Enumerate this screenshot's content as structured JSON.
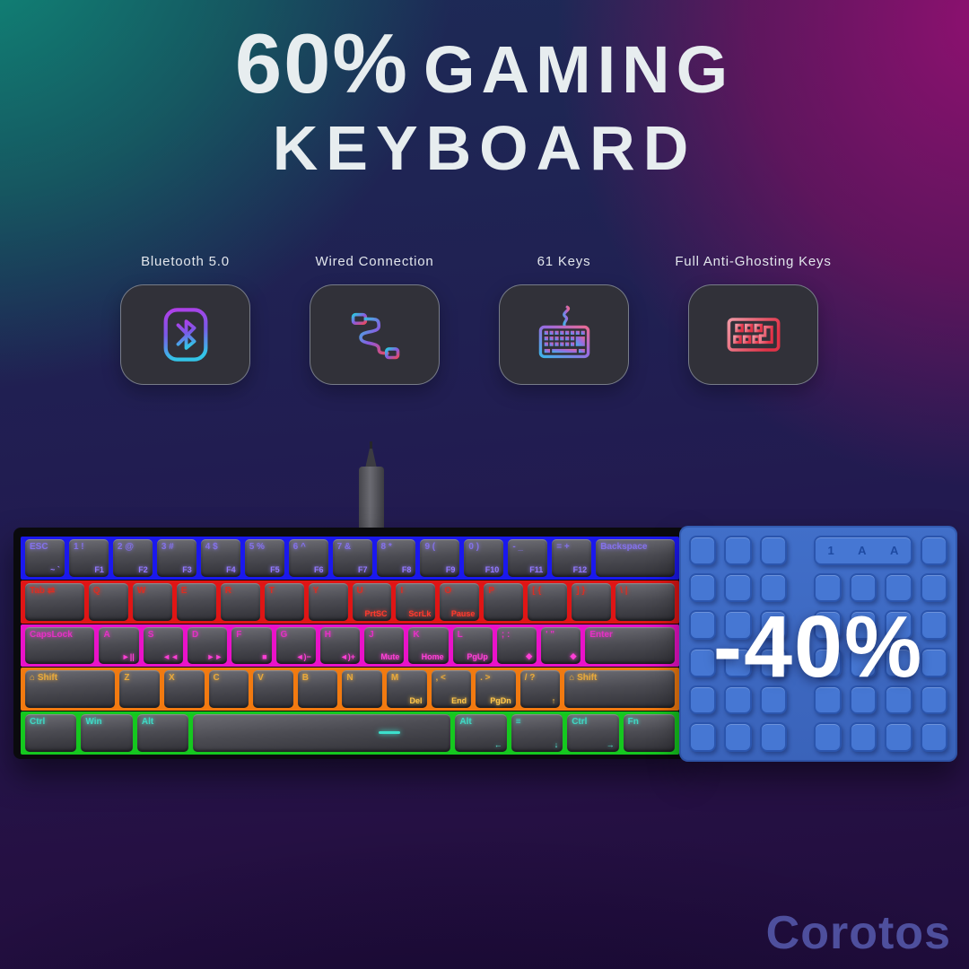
{
  "title": {
    "big": "60%",
    "line1_rest": "GAMING",
    "line2": "KEYBOARD"
  },
  "features": [
    {
      "label": "Bluetooth 5.0",
      "icon": "bluetooth-icon"
    },
    {
      "label": "Wired Connection",
      "icon": "usb-cable-icon"
    },
    {
      "label": "61 Keys",
      "icon": "keyboard-61-keys-icon"
    },
    {
      "label": "Full Anti-Ghosting Keys",
      "icon": "anti-ghosting-icon"
    }
  ],
  "panel": {
    "discount": "-40%",
    "indicators": [
      "1",
      "A",
      "A"
    ],
    "base_color": "#3f6cc6",
    "key_color": "#4677d3"
  },
  "watermark": "Corotos",
  "colors": {
    "bg_teal": "#0f8a79",
    "bg_magenta": "#8e1070",
    "bg_navy": "#1d2a56",
    "title_text": "#e7edef",
    "card_bg": "#313139",
    "row_glows": [
      "#1a18ee",
      "#e01515",
      "#ea12c9",
      "#f27a10",
      "#15c81f"
    ]
  },
  "keyboard": {
    "rows": [
      {
        "glow": "#1a18ee",
        "t_color": "#8472e8",
        "b_color": "#9379ff",
        "keys": [
          {
            "u": 1,
            "t": "ESC",
            "b": "~ `"
          },
          {
            "u": 1,
            "t": "1 !",
            "b": "F1"
          },
          {
            "u": 1,
            "t": "2 @",
            "b": "F2"
          },
          {
            "u": 1,
            "t": "3 #",
            "b": "F3"
          },
          {
            "u": 1,
            "t": "4 $",
            "b": "F4"
          },
          {
            "u": 1,
            "t": "5 %",
            "b": "F5"
          },
          {
            "u": 1,
            "t": "6 ^",
            "b": "F6"
          },
          {
            "u": 1,
            "t": "7 &",
            "b": "F7"
          },
          {
            "u": 1,
            "t": "8 *",
            "b": "F8"
          },
          {
            "u": 1,
            "t": "9 (",
            "b": "F9"
          },
          {
            "u": 1,
            "t": "0 )",
            "b": "F10"
          },
          {
            "u": 1,
            "t": "- _",
            "b": "F11"
          },
          {
            "u": 1,
            "t": "= +",
            "b": "F12"
          },
          {
            "u": 2,
            "t": "Backspace",
            "b": ""
          }
        ]
      },
      {
        "glow": "#e01515",
        "t_color": "#d92e24",
        "b_color": "#ff3b2e",
        "keys": [
          {
            "u": 1.5,
            "t": "Tab ⇄",
            "b": ""
          },
          {
            "u": 1,
            "t": "Q",
            "b": ""
          },
          {
            "u": 1,
            "t": "W",
            "b": ""
          },
          {
            "u": 1,
            "t": "E",
            "b": ""
          },
          {
            "u": 1,
            "t": "R",
            "b": ""
          },
          {
            "u": 1,
            "t": "T",
            "b": ""
          },
          {
            "u": 1,
            "t": "Y",
            "b": ""
          },
          {
            "u": 1,
            "t": "U",
            "b": "PrtSC"
          },
          {
            "u": 1,
            "t": "I",
            "b": "ScrLk"
          },
          {
            "u": 1,
            "t": "O",
            "b": "Pause"
          },
          {
            "u": 1,
            "t": "P",
            "b": ""
          },
          {
            "u": 1,
            "t": "[ {",
            "b": ""
          },
          {
            "u": 1,
            "t": "] }",
            "b": ""
          },
          {
            "u": 1.5,
            "t": "\\ |",
            "b": ""
          }
        ]
      },
      {
        "glow": "#ea12c9",
        "t_color": "#e431c4",
        "b_color": "#ff3fd6",
        "keys": [
          {
            "u": 1.75,
            "t": "CapsLock",
            "b": ""
          },
          {
            "u": 1,
            "t": "A",
            "b": "►||"
          },
          {
            "u": 1,
            "t": "S",
            "b": "◄◄"
          },
          {
            "u": 1,
            "t": "D",
            "b": "►►"
          },
          {
            "u": 1,
            "t": "F",
            "b": "■"
          },
          {
            "u": 1,
            "t": "G",
            "b": "◄)−"
          },
          {
            "u": 1,
            "t": "H",
            "b": "◄)+"
          },
          {
            "u": 1,
            "t": "J",
            "b": "Mute"
          },
          {
            "u": 1,
            "t": "K",
            "b": "Home"
          },
          {
            "u": 1,
            "t": "L",
            "b": "PgUp"
          },
          {
            "u": 1,
            "t": "; :",
            "b": "◆"
          },
          {
            "u": 1,
            "t": "' \"",
            "b": "◆"
          },
          {
            "u": 2.25,
            "t": "Enter",
            "b": ""
          }
        ]
      },
      {
        "glow": "#f27a10",
        "t_color": "#e8a93c",
        "b_color": "#ffc548",
        "keys": [
          {
            "u": 2.25,
            "t": "⌂ Shift",
            "b": ""
          },
          {
            "u": 1,
            "t": "Z",
            "b": ""
          },
          {
            "u": 1,
            "t": "X",
            "b": ""
          },
          {
            "u": 1,
            "t": "C",
            "b": ""
          },
          {
            "u": 1,
            "t": "V",
            "b": ""
          },
          {
            "u": 1,
            "t": "B",
            "b": ""
          },
          {
            "u": 1,
            "t": "N",
            "b": ""
          },
          {
            "u": 1,
            "t": "M",
            "b": "Del"
          },
          {
            "u": 1,
            "t": ", <",
            "b": "End"
          },
          {
            "u": 1,
            "t": ". >",
            "b": "PgDn"
          },
          {
            "u": 1,
            "t": "/ ?",
            "b": "↑"
          },
          {
            "u": 2.75,
            "t": "⌂ Shift",
            "b": ""
          }
        ]
      },
      {
        "glow": "#15c81f",
        "t_color": "#40d8c4",
        "b_color": "#54e8d4",
        "keys": [
          {
            "u": 1.25,
            "t": "Ctrl",
            "b": ""
          },
          {
            "u": 1.25,
            "t": "Win",
            "b": ""
          },
          {
            "u": 1.25,
            "t": "Alt",
            "b": ""
          },
          {
            "u": 6.25,
            "t": "",
            "b": "",
            "led": true
          },
          {
            "u": 1.25,
            "t": "Alt",
            "b": "←"
          },
          {
            "u": 1.25,
            "t": "≡",
            "b": "↓"
          },
          {
            "u": 1.25,
            "t": "Ctrl",
            "b": "→"
          },
          {
            "u": 1.25,
            "t": "Fn",
            "b": ""
          }
        ]
      }
    ]
  }
}
